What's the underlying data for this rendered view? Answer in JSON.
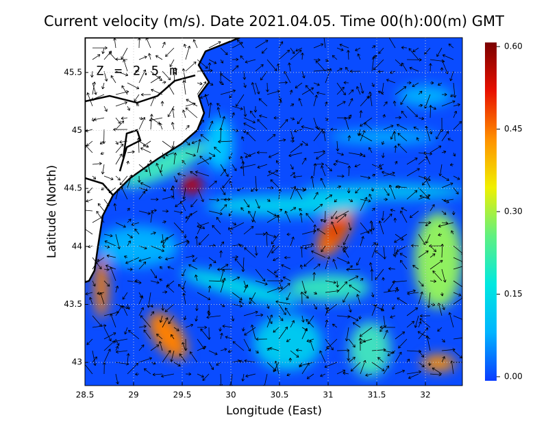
{
  "chart_data": {
    "type": "heatmap-map",
    "title": "Current velocity (m/s). Date 2021.04.05. Time 00(h):00(m) GMT",
    "annotation": "Z = 2.5 m",
    "xlabel": "Longitude (East)",
    "ylabel": "Latitude (North)",
    "xlim": [
      28.5,
      32.38
    ],
    "ylim": [
      42.8,
      45.8
    ],
    "xticks": [
      28.5,
      29,
      29.5,
      30,
      30.5,
      31,
      31.5,
      32
    ],
    "yticks": [
      45.5,
      45,
      44.5,
      44,
      43.5,
      43
    ],
    "grid": true,
    "colorbar": {
      "lim": [
        0,
        0.6
      ],
      "ticks": [
        {
          "value": 0.6,
          "label": "0.60"
        },
        {
          "value": 0.45,
          "label": "0.45"
        },
        {
          "value": 0.3,
          "label": "0.30"
        },
        {
          "value": 0.15,
          "label": "0.15"
        },
        {
          "value": 0,
          "label": "0.00"
        }
      ],
      "colors": [
        "#0a3cff",
        "#00b4ff",
        "#00e8e0",
        "#60f080",
        "#f0f000",
        "#ff9000",
        "#e81000",
        "#7a0000"
      ]
    }
  }
}
